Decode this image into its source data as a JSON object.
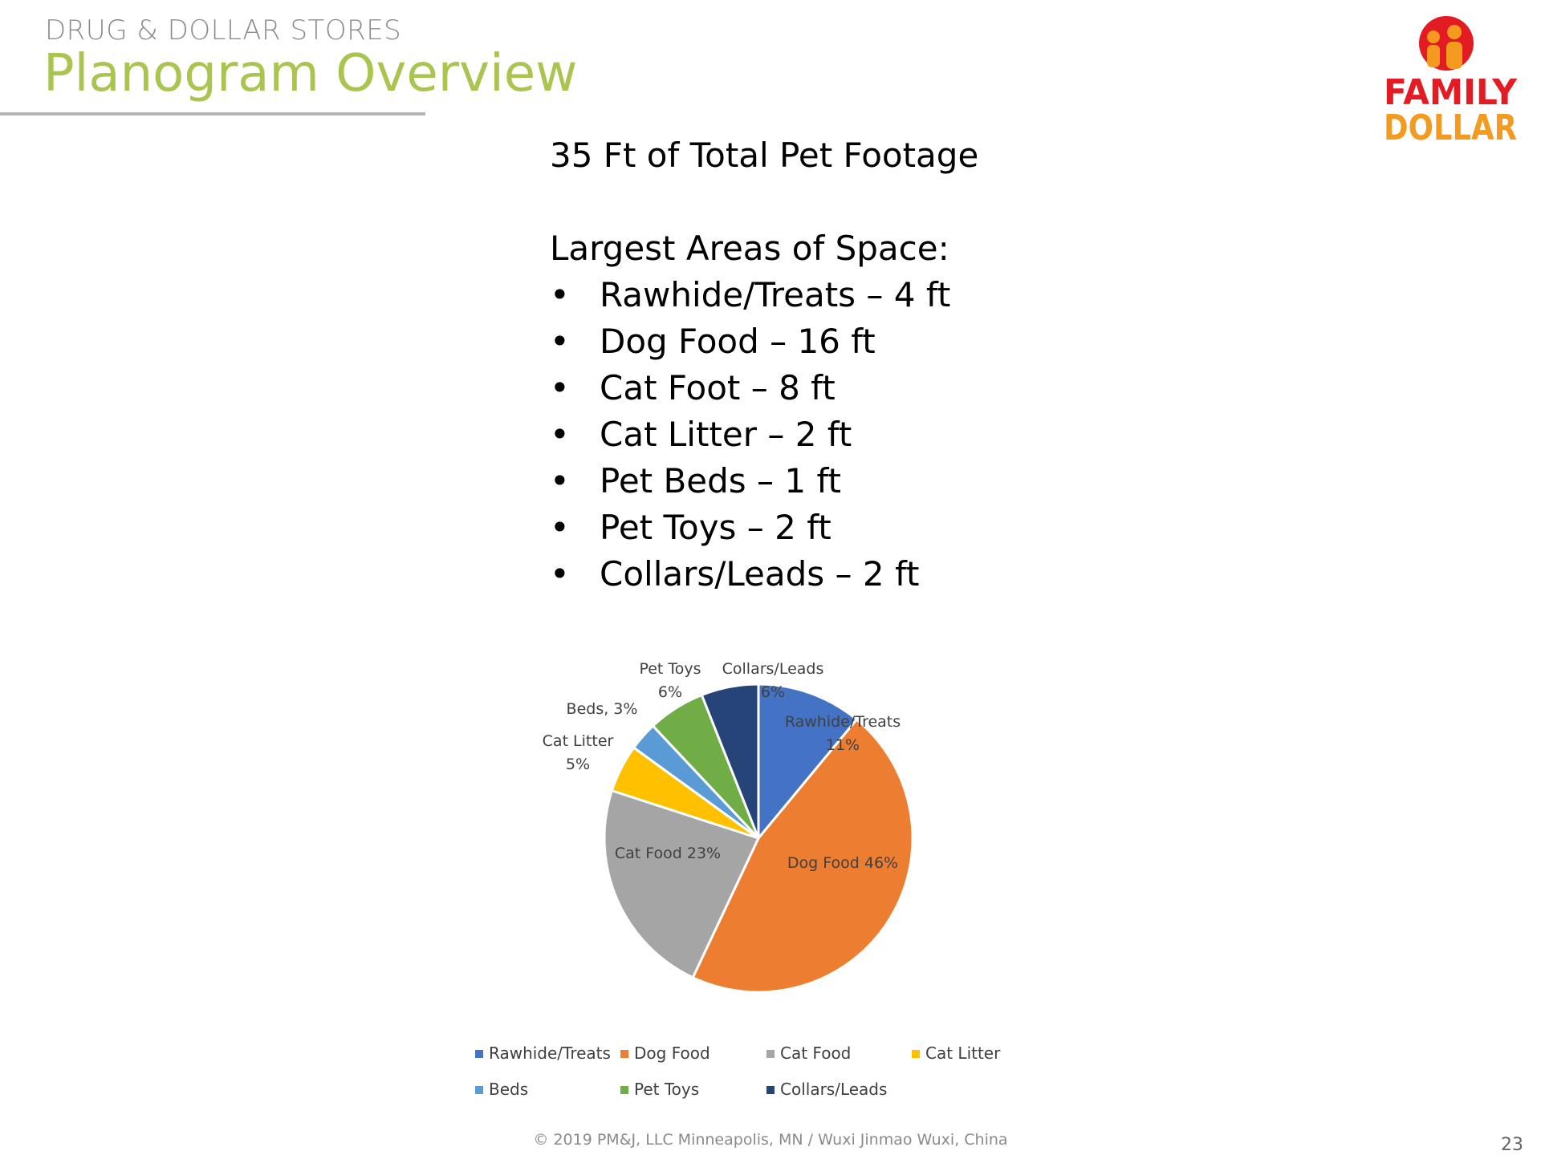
{
  "header": {
    "section": "DRUG & DOLLAR STORES",
    "title": "Planogram Overview"
  },
  "logo": {
    "line1": "FAMILY",
    "line2": "DOLLAR",
    "colors": {
      "red": "#e31b23",
      "orange": "#f39a1f"
    }
  },
  "summary": {
    "total": "35 Ft of Total Pet Footage",
    "heading": "Largest Areas of Space:",
    "bullet": "•",
    "items": [
      "Rawhide/Treats – 4 ft",
      "Dog Food – 16 ft",
      "Cat Foot – 8 ft",
      "Cat Litter – 2 ft",
      "Pet Beds – 1 ft",
      "Pet Toys – 2 ft",
      "Collars/Leads – 2 ft"
    ]
  },
  "chart_data": {
    "type": "pie",
    "categories": [
      "Rawhide/Treats",
      "Dog Food",
      "Cat Food",
      "Cat Litter",
      "Beds",
      "Pet Toys",
      "Collars/Leads"
    ],
    "values": [
      11,
      46,
      23,
      5,
      3,
      6,
      6
    ],
    "colors": [
      "#4472c4",
      "#ed7d31",
      "#a5a5a5",
      "#ffc000",
      "#5b9bd5",
      "#70ad47",
      "#264478"
    ],
    "data_labels": [
      [
        "Rawhide/Treats",
        "11%"
      ],
      [
        "Dog Food 46%"
      ],
      [
        "Cat Food 23%"
      ],
      [
        "Cat Litter",
        "5%"
      ],
      [
        "Beds,  3%"
      ],
      [
        "Pet Toys",
        "6%"
      ],
      [
        "Collars/Leads",
        "6%"
      ]
    ],
    "legend": [
      "Rawhide/Treats",
      "Dog Food",
      "Cat Food",
      "Cat Litter",
      "Beds",
      "Pet Toys",
      "Collars/Leads"
    ],
    "legend_position": "bottom",
    "start_angle_deg": 0,
    "direction": "clockwise"
  },
  "footer": {
    "copyright": "© 2019 PM&J, LLC  Minneapolis, MN  /  Wuxi Jinmao  Wuxi, China",
    "page_number": "23"
  }
}
